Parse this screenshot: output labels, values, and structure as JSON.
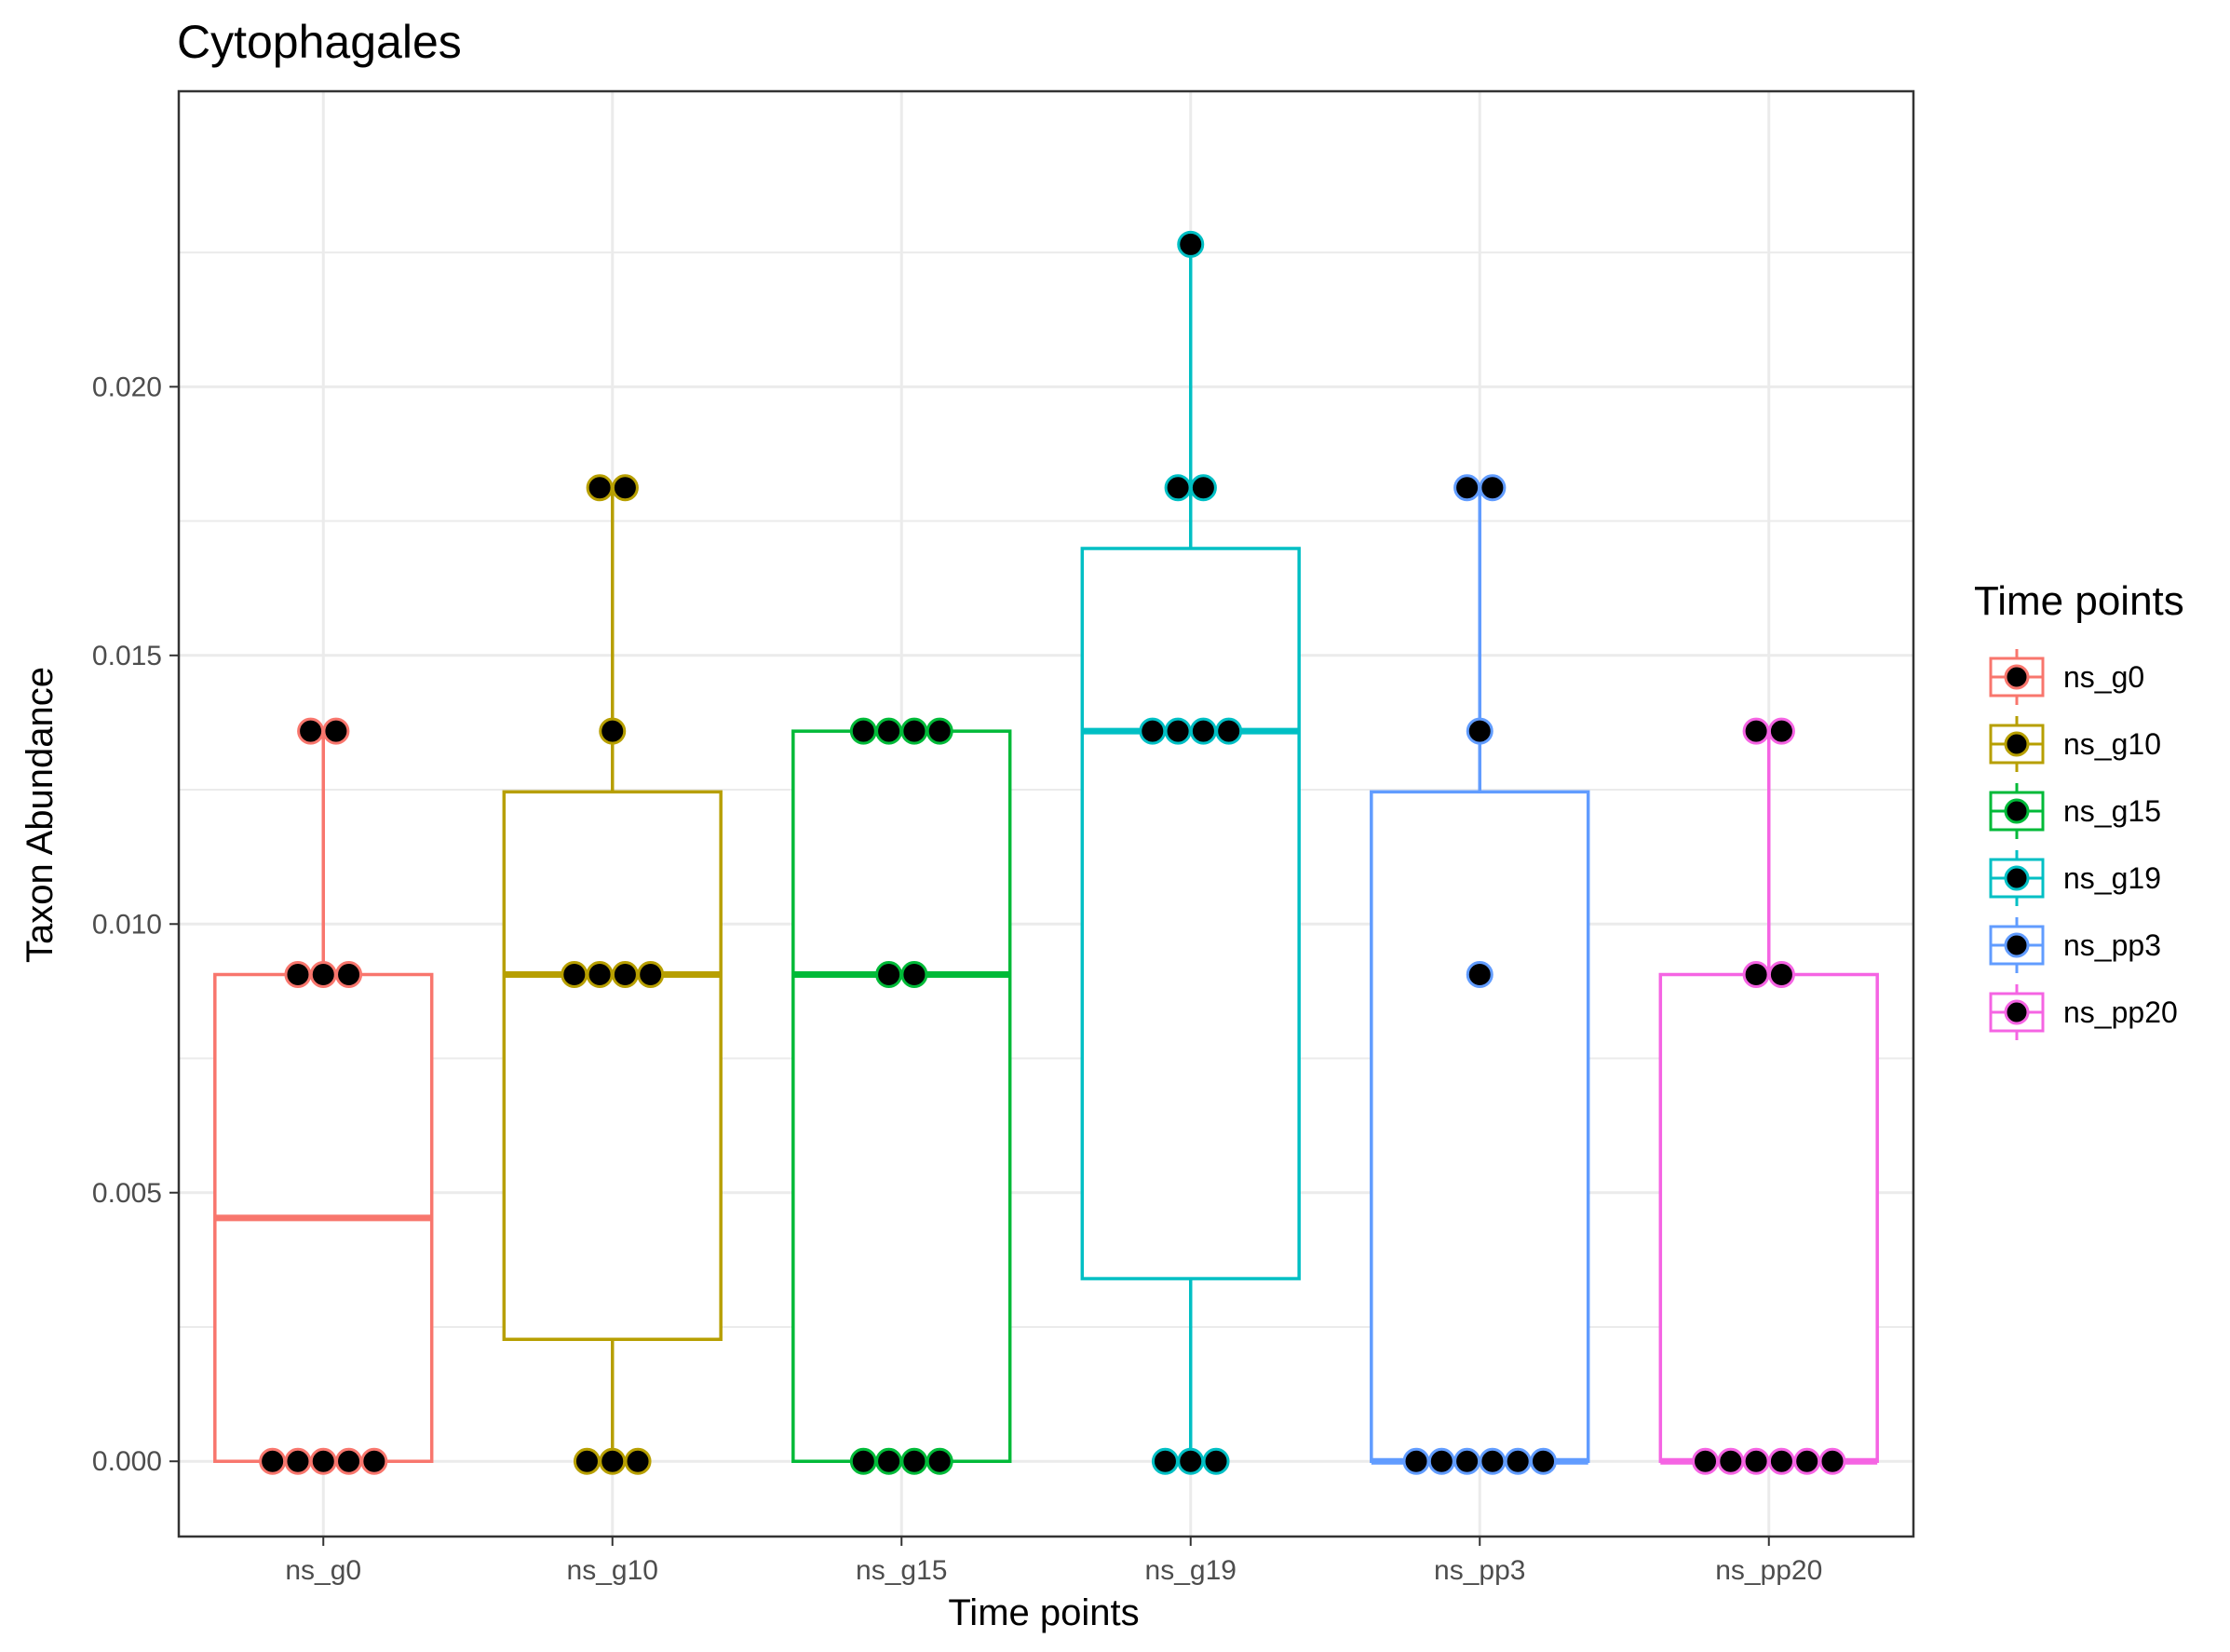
{
  "chart_data": {
    "type": "boxplot",
    "title": "Cytophagales",
    "xlabel": "Time points",
    "ylabel": "Taxon Abundance",
    "ylim": [
      -0.0014,
      0.0255
    ],
    "yticks": [
      0.0,
      0.005,
      0.01,
      0.015,
      0.02
    ],
    "ytick_labels": [
      "0.000",
      "0.005",
      "0.010",
      "0.015",
      "0.020"
    ],
    "grid": true,
    "legend": {
      "title": "Time points",
      "position": "right"
    },
    "categories": [
      "ns_g0",
      "ns_g10",
      "ns_g15",
      "ns_g19",
      "ns_pp3",
      "ns_pp20"
    ],
    "series": [
      {
        "name": "ns_g0",
        "color": "#F8766D",
        "box": {
          "q1": 0.0,
          "median": 0.00453,
          "q3": 0.00906,
          "whisker_low": 0.0,
          "whisker_high": 0.01359
        },
        "points": [
          {
            "y": 0.01359,
            "count": 2
          },
          {
            "y": 0.00906,
            "count": 3
          },
          {
            "y": 0.0,
            "count": 5
          }
        ]
      },
      {
        "name": "ns_g10",
        "color": "#B79F00",
        "box": {
          "q1": 0.00227,
          "median": 0.00906,
          "q3": 0.01246,
          "whisker_low": 0.0,
          "whisker_high": 0.01812
        },
        "points": [
          {
            "y": 0.01812,
            "count": 2
          },
          {
            "y": 0.01359,
            "count": 1
          },
          {
            "y": 0.00906,
            "count": 4
          },
          {
            "y": 0.0,
            "count": 3
          }
        ]
      },
      {
        "name": "ns_g15",
        "color": "#00BA38",
        "box": {
          "q1": 0.0,
          "median": 0.00906,
          "q3": 0.01359,
          "whisker_low": 0.0,
          "whisker_high": 0.01359
        },
        "points": [
          {
            "y": 0.01359,
            "count": 4
          },
          {
            "y": 0.00906,
            "count": 2
          },
          {
            "y": 0.0,
            "count": 4
          }
        ]
      },
      {
        "name": "ns_g19",
        "color": "#00BFC4",
        "box": {
          "q1": 0.0034,
          "median": 0.01359,
          "q3": 0.01699,
          "whisker_low": 0.0,
          "whisker_high": 0.02265
        },
        "points": [
          {
            "y": 0.02265,
            "count": 1
          },
          {
            "y": 0.01812,
            "count": 2
          },
          {
            "y": 0.01359,
            "count": 4
          },
          {
            "y": 0.0,
            "count": 3
          }
        ]
      },
      {
        "name": "ns_pp3",
        "color": "#619CFF",
        "box": {
          "q1": 0.0,
          "median": 0.0,
          "q3": 0.01246,
          "whisker_low": 0.0,
          "whisker_high": 0.01812
        },
        "points": [
          {
            "y": 0.01812,
            "count": 2
          },
          {
            "y": 0.01359,
            "count": 1
          },
          {
            "y": 0.00906,
            "count": 1
          },
          {
            "y": 0.0,
            "count": 6
          }
        ]
      },
      {
        "name": "ns_pp20",
        "color": "#F564E3",
        "box": {
          "q1": 0.0,
          "median": 0.0,
          "q3": 0.00906,
          "whisker_low": 0.0,
          "whisker_high": 0.01359
        },
        "points": [
          {
            "y": 0.01359,
            "count": 2
          },
          {
            "y": 0.00906,
            "count": 2
          },
          {
            "y": 0.0,
            "count": 6
          }
        ]
      }
    ]
  }
}
